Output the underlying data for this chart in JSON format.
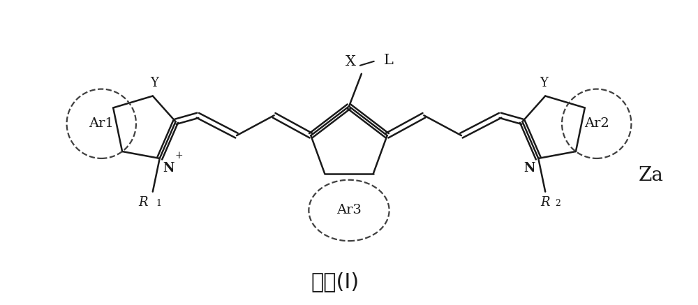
{
  "title": "结构(I)",
  "label_Za": "Za",
  "label_Ar1": "Ar1",
  "label_Ar2": "Ar2",
  "label_Ar3": "Ar3",
  "label_X": "X",
  "label_L": "L",
  "label_Y_left": "Y",
  "label_Y_right": "Y",
  "label_N_left": "N",
  "label_N_right": "N",
  "bg_color": "#ffffff",
  "line_color": "#1a1a1a",
  "text_color": "#1a1a1a"
}
